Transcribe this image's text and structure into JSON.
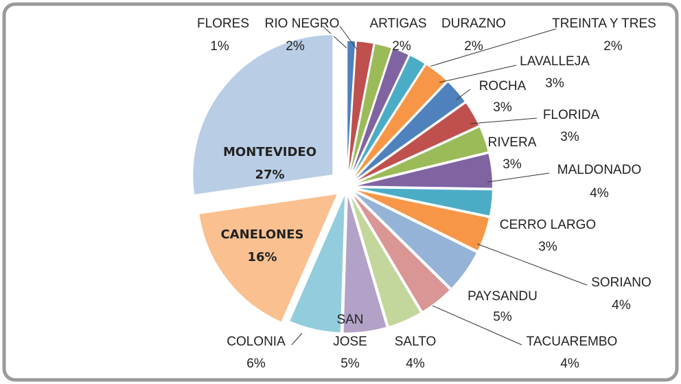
{
  "chart_data": {
    "type": "pie",
    "categories": [
      "FLORES",
      "RIO NEGRO",
      "ARTIGAS",
      "DURAZNO",
      "TREINTA Y TRES",
      "LAVALLEJA",
      "ROCHA",
      "FLORIDA",
      "RIVERA",
      "MALDONADO",
      "CERRO LARGO",
      "SORIANO",
      "PAYSANDU",
      "TACUAREMBO",
      "SALTO",
      "SAN JOSE",
      "COLONIA",
      "CANELONES",
      "MONTEVIDEO"
    ],
    "values": [
      1,
      2,
      2,
      2,
      2,
      3,
      3,
      3,
      3,
      4,
      3,
      4,
      5,
      4,
      4,
      5,
      6,
      16,
      27
    ],
    "value_labels": [
      "1%",
      "2%",
      "2%",
      "2%",
      "2%",
      "3%",
      "3%",
      "3%",
      "3%",
      "4%",
      "3%",
      "4%",
      "5%",
      "4%",
      "4%",
      "5%",
      "6%",
      "16%",
      "27%"
    ],
    "colors": [
      "#4f81bd",
      "#c0504d",
      "#9bbb59",
      "#8064a2",
      "#4bacc6",
      "#f79646",
      "#4f81bd",
      "#c0504d",
      "#9bbb59",
      "#8064a2",
      "#4bacc6",
      "#f79646",
      "#95b3d7",
      "#d99694",
      "#c3d69b",
      "#b3a2c7",
      "#93cddd",
      "#fac090",
      "#b9cde5"
    ]
  }
}
